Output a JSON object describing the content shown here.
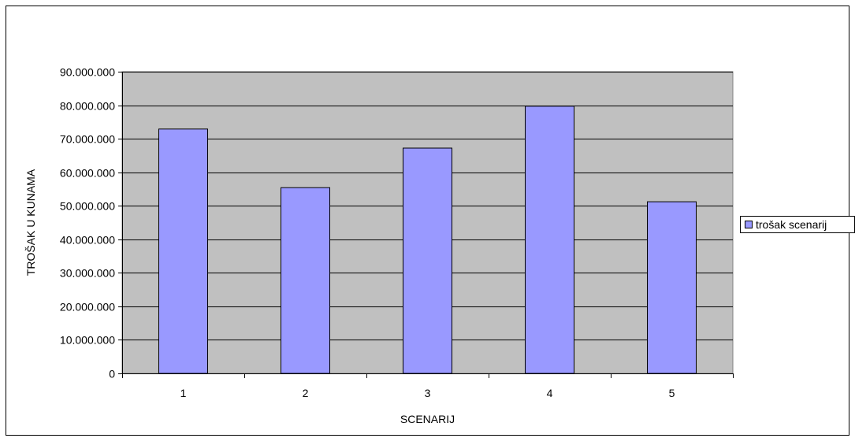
{
  "chart_data": {
    "type": "bar",
    "categories": [
      "1",
      "2",
      "3",
      "4",
      "5"
    ],
    "series": [
      {
        "name": "trošak scenarij",
        "values": [
          72900000,
          55400000,
          67200000,
          79700000,
          51200000
        ]
      }
    ],
    "title": "",
    "xlabel": "SCENARIJ",
    "ylabel": "TROŠAK U KUNAMA",
    "ylim": [
      0,
      90000000
    ],
    "yticks": [
      "0",
      "10.000.000",
      "20.000.000",
      "30.000.000",
      "40.000.000",
      "50.000.000",
      "60.000.000",
      "70.000.000",
      "80.000.000",
      "90.000.000"
    ],
    "grid": true,
    "legend_position": "right",
    "colors": {
      "plot_background": "#c0c0c0",
      "bar_fill": "#9999ff",
      "bar_stroke": "#000000",
      "gridline": "#000000"
    }
  }
}
